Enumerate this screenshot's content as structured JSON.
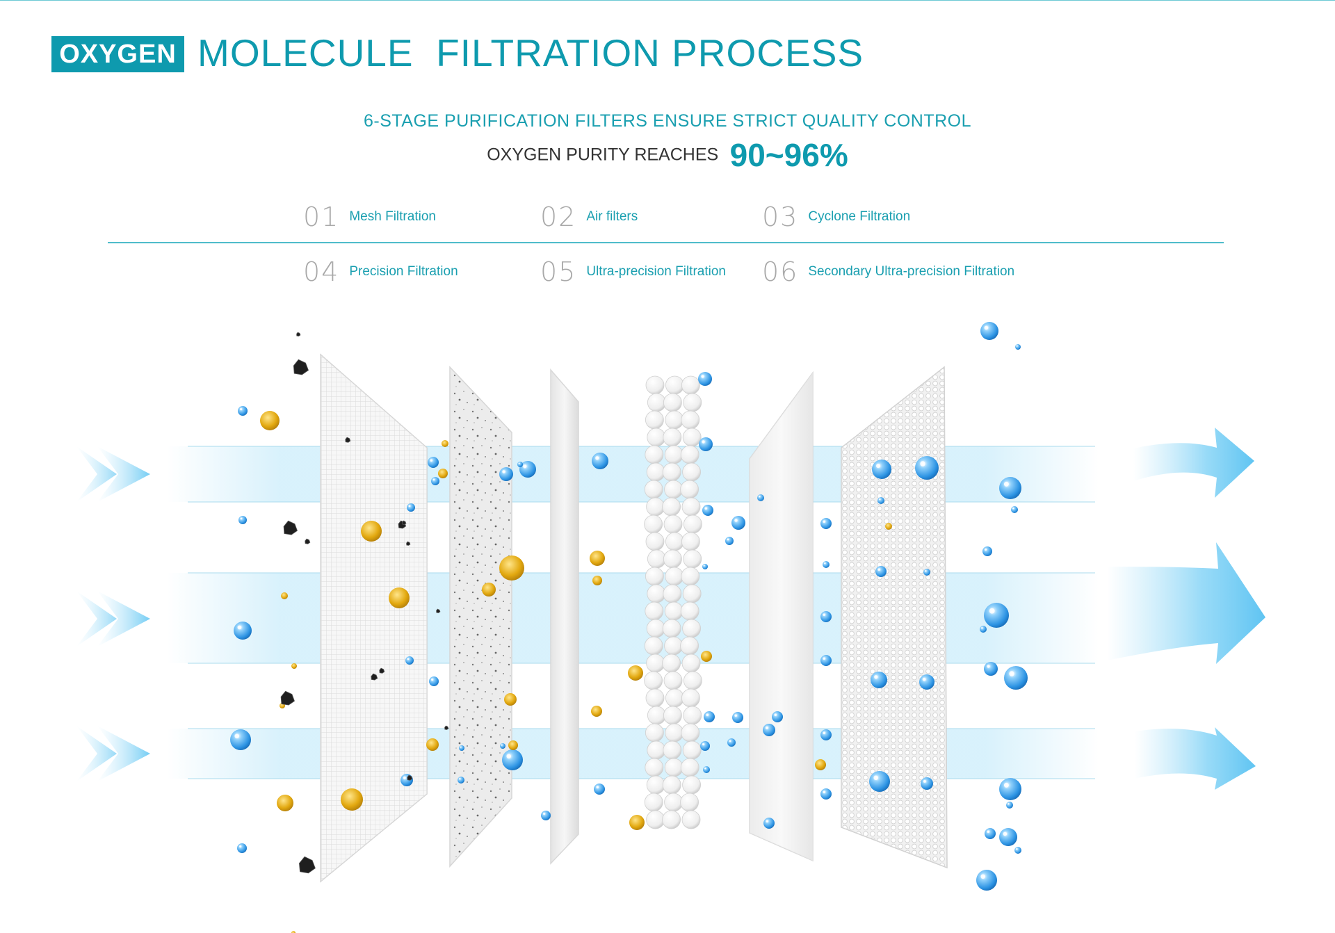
{
  "title": {
    "badge": "OXYGEN",
    "rest": "MOLECULE  FILTRATION PROCESS"
  },
  "subtitle": "6-STAGE PURIFICATION FILTERS ENSURE STRICT QUALITY CONTROL",
  "purity": {
    "label": "OXYGEN PURITY REACHES",
    "value": "90~96%"
  },
  "stages": [
    {
      "num": "01",
      "label": "Mesh Filtration"
    },
    {
      "num": "02",
      "label": "Air filters"
    },
    {
      "num": "03",
      "label": "Cyclone Filtration"
    },
    {
      "num": "04",
      "label": "Precision Filtration"
    },
    {
      "num": "05",
      "label": "Ultra-precision Filtration"
    },
    {
      "num": "06",
      "label": "Secondary Ultra-precision Filtration"
    }
  ],
  "colors": {
    "accent": "#0e9aae",
    "oxygen": "#2f9be6",
    "dust": "#d9a30e",
    "carbon": "#222222",
    "airflow": "#c8ecfb"
  }
}
